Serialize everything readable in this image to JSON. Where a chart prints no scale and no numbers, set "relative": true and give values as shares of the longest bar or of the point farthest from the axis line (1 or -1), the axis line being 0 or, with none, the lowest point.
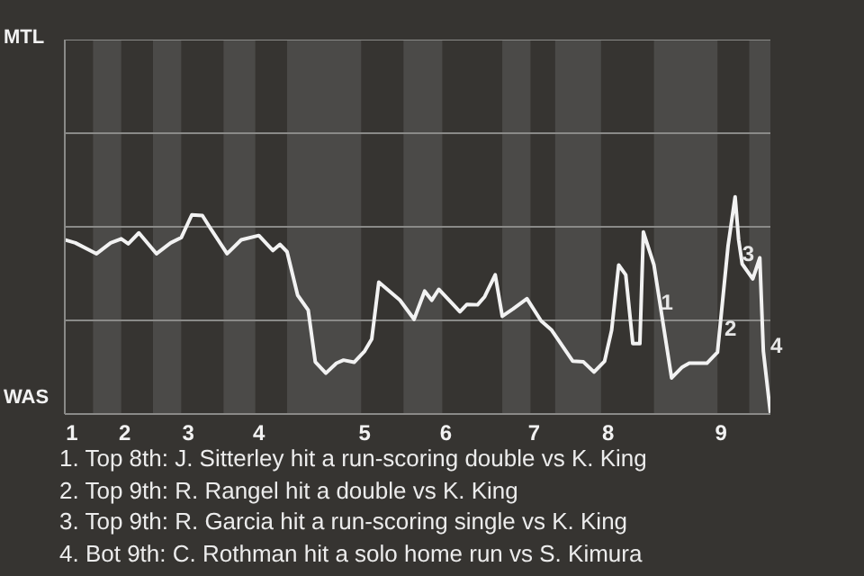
{
  "chart_data": {
    "type": "line",
    "relative": true,
    "categories": [
      null,
      null,
      "1",
      null,
      null,
      null,
      null,
      null,
      null,
      null,
      null,
      null,
      null,
      null,
      null,
      null,
      null,
      "2",
      null,
      null,
      null,
      null,
      null,
      null,
      null,
      null,
      null,
      null,
      null,
      null,
      null,
      null,
      null,
      null,
      null,
      "3",
      null,
      null,
      null,
      null,
      null,
      null,
      null,
      null,
      null,
      null,
      null,
      null,
      null,
      null,
      null,
      null,
      null,
      null,
      null,
      "4",
      null,
      null,
      null,
      null,
      null,
      null,
      null,
      null,
      null,
      null,
      null,
      null,
      null,
      null,
      null,
      null,
      null,
      null,
      null,
      null,
      null,
      null,
      null,
      null,
      null,
      null,
      null,
      null,
      null,
      "5",
      null,
      null,
      null,
      null,
      null,
      null,
      null,
      null,
      null,
      null,
      null,
      null,
      null,
      null,
      null,
      null,
      null,
      null,
      null,
      null,
      null,
      null,
      "6",
      null,
      null,
      null,
      null,
      null,
      null,
      null,
      null,
      null,
      null,
      null,
      null,
      null,
      null,
      null,
      null,
      null,
      null,
      null,
      null,
      null,
      null,
      null,
      null,
      "7",
      null,
      null,
      null,
      null,
      null,
      null,
      null,
      null,
      null,
      null,
      null,
      null,
      null,
      null,
      null,
      null,
      null,
      null,
      null,
      null,
      "8",
      null,
      null,
      null,
      null,
      null,
      null,
      null,
      null,
      null,
      null,
      null,
      null,
      null,
      null,
      null,
      null,
      null,
      null,
      null,
      null,
      null,
      null,
      null,
      null,
      null,
      null,
      null,
      null,
      null,
      null,
      null,
      "9",
      null,
      null,
      null,
      null,
      null,
      null,
      null,
      null,
      null,
      null,
      null,
      null,
      null,
      null
    ],
    "series": [
      {
        "color": "#f2f2f2",
        "values": [
          0.802,
          null,
          null,
          0.788,
          null,
          null,
          null,
          null,
          null,
          0.738,
          null,
          null,
          null,
          0.788,
          null,
          null,
          0.807,
          null,
          0.784,
          null,
          null,
          0.834,
          null,
          null,
          null,
          null,
          0.738,
          null,
          null,
          null,
          0.788,
          null,
          null,
          0.812,
          null,
          null,
          0.917,
          null,
          null,
          0.914,
          null,
          0.862,
          null,
          null,
          null,
          null,
          0.738,
          null,
          null,
          null,
          0.802,
          null,
          null,
          null,
          null,
          0.822,
          null,
          null,
          null,
          0.753,
          null,
          0.781,
          null,
          0.747,
          null,
          null,
          0.547,
          null,
          null,
          0.478,
          null,
          0.24,
          null,
          null,
          0.188,
          null,
          null,
          0.234,
          null,
          0.248,
          null,
          null,
          0.238,
          null,
          null,
          0.29,
          null,
          0.345,
          null,
          0.607,
          null,
          null,
          null,
          null,
          null,
          0.524,
          null,
          null,
          null,
          0.436,
          null,
          null,
          0.566,
          null,
          0.524,
          null,
          0.574,
          null,
          null,
          null,
          null,
          null,
          0.471,
          null,
          0.505,
          null,
          null,
          0.503,
          null,
          0.54,
          null,
          null,
          0.641,
          null,
          0.45,
          null,
          null,
          0.483,
          null,
          null,
          null,
          0.531,
          null,
          null,
          null,
          0.429,
          null,
          null,
          0.386,
          null,
          null,
          null,
          null,
          null,
          0.243,
          null,
          null,
          0.24,
          null,
          null,
          0.193,
          null,
          null,
          0.243,
          null,
          0.386,
          null,
          0.686,
          null,
          0.641,
          null,
          0.324,
          null,
          0.324,
          0.838,
          null,
          null,
          0.686,
          null,
          null,
          null,
          null,
          0.166,
          null,
          null,
          0.216,
          null,
          0.234,
          null,
          null,
          null,
          null,
          0.234,
          null,
          null,
          0.284,
          null,
          null,
          0.774,
          null,
          1,
          0.802,
          0.691,
          null,
          null,
          0.622,
          null,
          0.719,
          0.29,
          null,
          0.005
        ]
      }
    ],
    "ref_lines": [
      {
        "axis": "y",
        "value": 0.431,
        "color": "#8a8a88"
      },
      {
        "axis": "y",
        "value": 0.862,
        "color": "#8a8a88"
      },
      {
        "axis": "y",
        "value": 1.293,
        "color": "#8a8a88"
      }
    ],
    "marker": "none",
    "line_style": "solid",
    "legend": false,
    "annotations": [
      "MTL",
      "WAS",
      {
        "text": "1",
        "y": 0.517
      },
      {
        "text": "2",
        "y": 0.397
      },
      {
        "text": "3",
        "y": 0.741
      },
      "4",
      "1. Top 8th: J. Sitterley hit a run-scoring double vs K. King",
      "2. Top 9th: R. Rangel hit a double vs K. King",
      "3. Top 9th: R. Garcia hit a run-scoring single vs K. King",
      "4. Bot 9th: C. Rothman hit a solo home run vs S. Kimura"
    ]
  }
}
